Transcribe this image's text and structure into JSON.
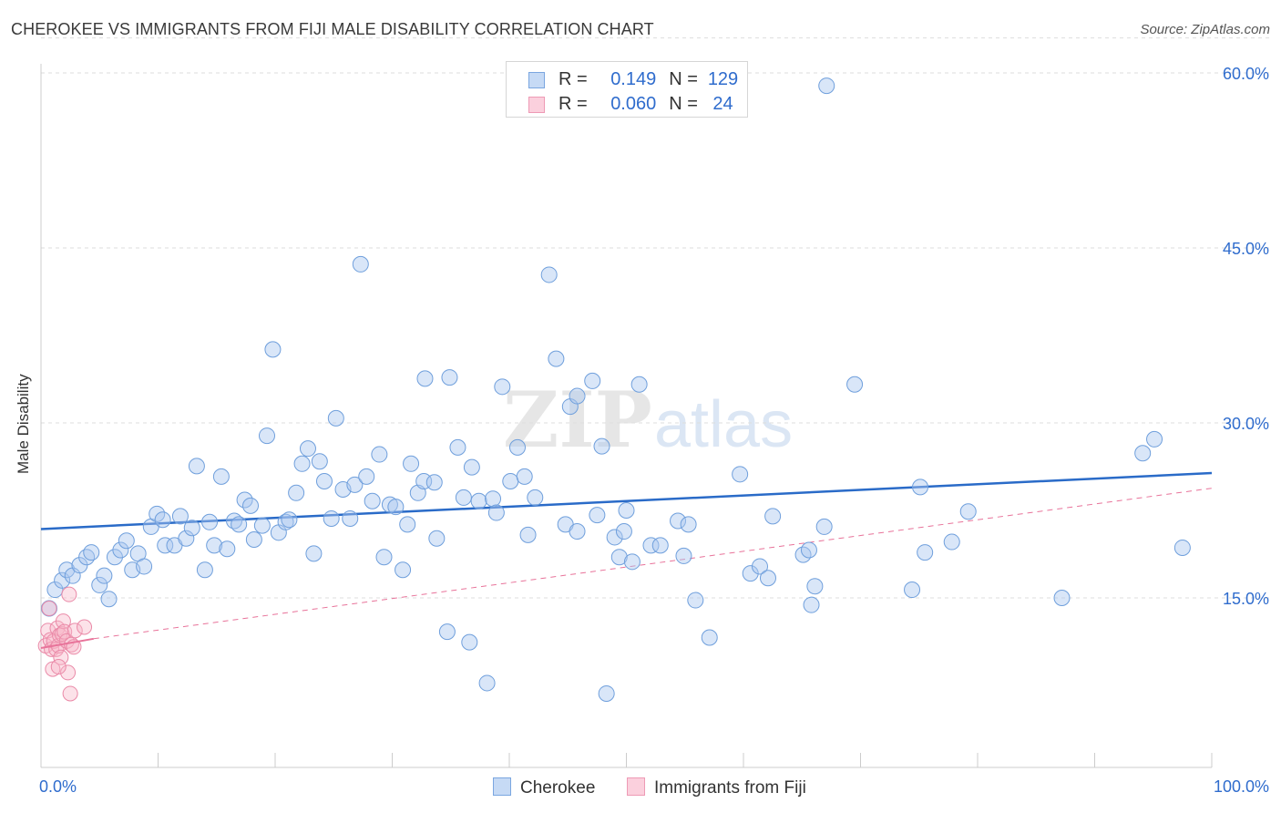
{
  "title": "CHEROKEE VS IMMIGRANTS FROM FIJI MALE DISABILITY CORRELATION CHART",
  "source": "Source: ZipAtlas.com",
  "watermark": {
    "zip": "ZIP",
    "atlas": "atlas"
  },
  "legend_top": {
    "rows": [
      {
        "r_label": "R = ",
        "r_value": "0.149",
        "n_label": "N = ",
        "n_value": "129"
      },
      {
        "r_label": "R = ",
        "r_value": "0.060",
        "n_label": "N = ",
        "n_value": "24"
      }
    ]
  },
  "colors": {
    "cherokee_fill": "#aac8f0",
    "cherokee_stroke": "#6f9fdc",
    "cherokee_line": "#2a6bc8",
    "fiji_fill": "#f7b6c9",
    "fiji_stroke": "#ea8aa8",
    "fiji_line": "#e8739a",
    "axis_text": "#2f6ccd",
    "grid": "#dddddd"
  },
  "chart_data": {
    "type": "scatter",
    "title": "CHEROKEE VS IMMIGRANTS FROM FIJI MALE DISABILITY CORRELATION CHART",
    "xlabel": "",
    "ylabel": "Male Disability",
    "xlim": [
      0,
      100
    ],
    "ylim": [
      0,
      63
    ],
    "x_tick_labels": [
      "0.0%",
      "100.0%"
    ],
    "y_ticks": [
      15,
      30,
      45,
      60
    ],
    "y_tick_labels": [
      "15.0%",
      "30.0%",
      "45.0%",
      "60.0%"
    ],
    "grid": true,
    "legend_position": "bottom",
    "series": [
      {
        "name": "Cherokee",
        "R": 0.149,
        "N": 129,
        "trend": {
          "x": [
            0,
            100
          ],
          "y": [
            20.9,
            25.7
          ]
        },
        "points": [
          [
            0.7,
            14.1
          ],
          [
            1.2,
            15.7
          ],
          [
            1.8,
            16.5
          ],
          [
            2.2,
            17.4
          ],
          [
            2.7,
            16.9
          ],
          [
            3.3,
            17.8
          ],
          [
            3.9,
            18.5
          ],
          [
            4.3,
            18.9
          ],
          [
            5.0,
            16.1
          ],
          [
            5.4,
            16.9
          ],
          [
            5.8,
            14.9
          ],
          [
            6.3,
            18.5
          ],
          [
            6.8,
            19.1
          ],
          [
            7.3,
            19.9
          ],
          [
            7.8,
            17.4
          ],
          [
            8.3,
            18.8
          ],
          [
            8.8,
            17.7
          ],
          [
            9.4,
            21.1
          ],
          [
            9.9,
            22.2
          ],
          [
            10.4,
            21.7
          ],
          [
            10.6,
            19.5
          ],
          [
            11.4,
            19.5
          ],
          [
            11.9,
            22.0
          ],
          [
            12.4,
            20.1
          ],
          [
            12.9,
            21.0
          ],
          [
            13.3,
            26.3
          ],
          [
            14.0,
            17.4
          ],
          [
            14.4,
            21.5
          ],
          [
            14.8,
            19.5
          ],
          [
            15.4,
            25.4
          ],
          [
            15.9,
            19.2
          ],
          [
            16.5,
            21.6
          ],
          [
            16.9,
            21.3
          ],
          [
            17.4,
            23.4
          ],
          [
            17.9,
            22.9
          ],
          [
            18.2,
            20.0
          ],
          [
            18.9,
            21.2
          ],
          [
            19.3,
            28.9
          ],
          [
            19.8,
            36.3
          ],
          [
            20.3,
            20.6
          ],
          [
            20.9,
            21.5
          ],
          [
            21.2,
            21.7
          ],
          [
            21.8,
            24.0
          ],
          [
            22.3,
            26.5
          ],
          [
            22.8,
            27.8
          ],
          [
            23.3,
            18.8
          ],
          [
            23.8,
            26.7
          ],
          [
            24.2,
            25.0
          ],
          [
            24.8,
            21.8
          ],
          [
            25.2,
            30.4
          ],
          [
            25.8,
            24.3
          ],
          [
            26.4,
            21.8
          ],
          [
            26.8,
            24.7
          ],
          [
            27.3,
            43.6
          ],
          [
            27.8,
            25.4
          ],
          [
            28.3,
            23.3
          ],
          [
            28.9,
            27.3
          ],
          [
            29.3,
            18.5
          ],
          [
            29.8,
            23.0
          ],
          [
            30.3,
            22.8
          ],
          [
            30.9,
            17.4
          ],
          [
            31.3,
            21.3
          ],
          [
            31.6,
            26.5
          ],
          [
            32.2,
            24.0
          ],
          [
            32.7,
            25.0
          ],
          [
            32.8,
            33.8
          ],
          [
            33.6,
            24.9
          ],
          [
            33.8,
            20.1
          ],
          [
            34.7,
            12.1
          ],
          [
            34.9,
            33.9
          ],
          [
            35.6,
            27.9
          ],
          [
            36.1,
            23.6
          ],
          [
            36.6,
            11.2
          ],
          [
            36.8,
            26.2
          ],
          [
            37.4,
            23.3
          ],
          [
            38.1,
            7.7
          ],
          [
            38.6,
            23.5
          ],
          [
            38.9,
            22.3
          ],
          [
            39.4,
            33.1
          ],
          [
            40.1,
            25.0
          ],
          [
            40.7,
            27.9
          ],
          [
            41.3,
            25.4
          ],
          [
            41.6,
            20.4
          ],
          [
            42.2,
            23.6
          ],
          [
            43.4,
            42.7
          ],
          [
            44.0,
            35.5
          ],
          [
            44.8,
            21.3
          ],
          [
            45.2,
            31.4
          ],
          [
            45.8,
            32.3
          ],
          [
            45.8,
            20.7
          ],
          [
            47.1,
            33.6
          ],
          [
            47.5,
            22.1
          ],
          [
            47.9,
            28.0
          ],
          [
            48.3,
            6.8
          ],
          [
            49.0,
            20.2
          ],
          [
            49.4,
            18.5
          ],
          [
            49.8,
            20.7
          ],
          [
            50.0,
            22.5
          ],
          [
            50.5,
            18.1
          ],
          [
            51.1,
            33.3
          ],
          [
            52.1,
            19.5
          ],
          [
            52.9,
            19.5
          ],
          [
            54.4,
            21.6
          ],
          [
            54.9,
            18.6
          ],
          [
            55.3,
            21.3
          ],
          [
            55.9,
            14.8
          ],
          [
            56.1,
            60.0
          ],
          [
            57.1,
            11.6
          ],
          [
            59.7,
            25.6
          ],
          [
            60.6,
            17.1
          ],
          [
            61.4,
            17.7
          ],
          [
            62.1,
            16.7
          ],
          [
            62.5,
            22.0
          ],
          [
            65.1,
            18.7
          ],
          [
            65.6,
            19.1
          ],
          [
            65.8,
            14.4
          ],
          [
            66.1,
            16.0
          ],
          [
            66.9,
            21.1
          ],
          [
            67.1,
            58.9
          ],
          [
            69.5,
            33.3
          ],
          [
            74.4,
            15.7
          ],
          [
            75.1,
            24.5
          ],
          [
            75.5,
            18.9
          ],
          [
            77.8,
            19.8
          ],
          [
            79.2,
            22.4
          ],
          [
            87.2,
            15.0
          ],
          [
            94.1,
            27.4
          ],
          [
            95.1,
            28.6
          ],
          [
            97.5,
            19.3
          ]
        ]
      },
      {
        "name": "Immigrants from Fiji",
        "R": 0.06,
        "N": 24,
        "trend": {
          "x": [
            0,
            4.5
          ],
          "y": [
            10.7,
            11.5
          ],
          "dashed_x": [
            4.5,
            100
          ],
          "dashed_y": [
            11.5,
            24.4
          ]
        },
        "points": [
          [
            0.4,
            10.9
          ],
          [
            0.6,
            12.2
          ],
          [
            0.7,
            14.1
          ],
          [
            0.8,
            11.4
          ],
          [
            0.9,
            10.6
          ],
          [
            1.0,
            8.9
          ],
          [
            1.1,
            11.3
          ],
          [
            1.3,
            10.6
          ],
          [
            1.4,
            12.4
          ],
          [
            1.5,
            10.9
          ],
          [
            1.6,
            11.8
          ],
          [
            1.7,
            9.9
          ],
          [
            1.8,
            11.9
          ],
          [
            1.9,
            13.0
          ],
          [
            2.0,
            12.1
          ],
          [
            2.2,
            11.3
          ],
          [
            2.3,
            8.6
          ],
          [
            2.4,
            15.3
          ],
          [
            2.5,
            6.8
          ],
          [
            2.6,
            11.0
          ],
          [
            2.8,
            10.8
          ],
          [
            2.9,
            12.2
          ],
          [
            1.5,
            9.1
          ],
          [
            3.7,
            12.5
          ]
        ]
      }
    ]
  }
}
